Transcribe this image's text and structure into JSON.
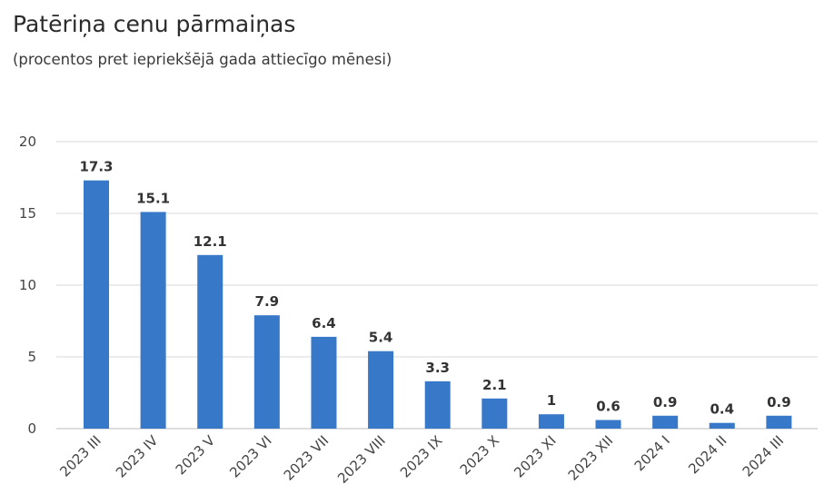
{
  "header": {
    "title": "Patēriņa cenu pārmaiņas",
    "subtitle": "(procentos pret iepriekšējā gada attiecīgo mēnesi)"
  },
  "colors": {
    "bar": "#3878c8",
    "grid": "#d9d9d9",
    "axis": "#bbbbbb"
  },
  "chart_data": {
    "type": "bar",
    "title": "Patēriņa cenu pārmaiņas",
    "subtitle": "(procentos pret iepriekšējā gada attiecīgo mēnesi)",
    "categories": [
      "2023 III",
      "2023 IV",
      "2023 V",
      "2023 VI",
      "2023 VII",
      "2023 VIII",
      "2023 IX",
      "2023 X",
      "2023 XI",
      "2023 XII",
      "2024 I",
      "2024 II",
      "2024 III"
    ],
    "values": [
      17.3,
      15.1,
      12.1,
      7.9,
      6.4,
      5.4,
      3.3,
      2.1,
      1,
      0.6,
      0.9,
      0.4,
      0.9
    ],
    "data_labels": [
      "17.3",
      "15.1",
      "12.1",
      "7.9",
      "6.4",
      "5.4",
      "3.3",
      "2.1",
      "1",
      "0.6",
      "0.9",
      "0.4",
      "0.9"
    ],
    "yticks": [
      "0",
      "5",
      "10",
      "15",
      "20"
    ],
    "ytick_values": [
      0,
      5,
      10,
      15,
      20
    ],
    "ylim": [
      0,
      20
    ],
    "xlabel": "",
    "ylabel": "",
    "grid": true,
    "legend": "none"
  }
}
